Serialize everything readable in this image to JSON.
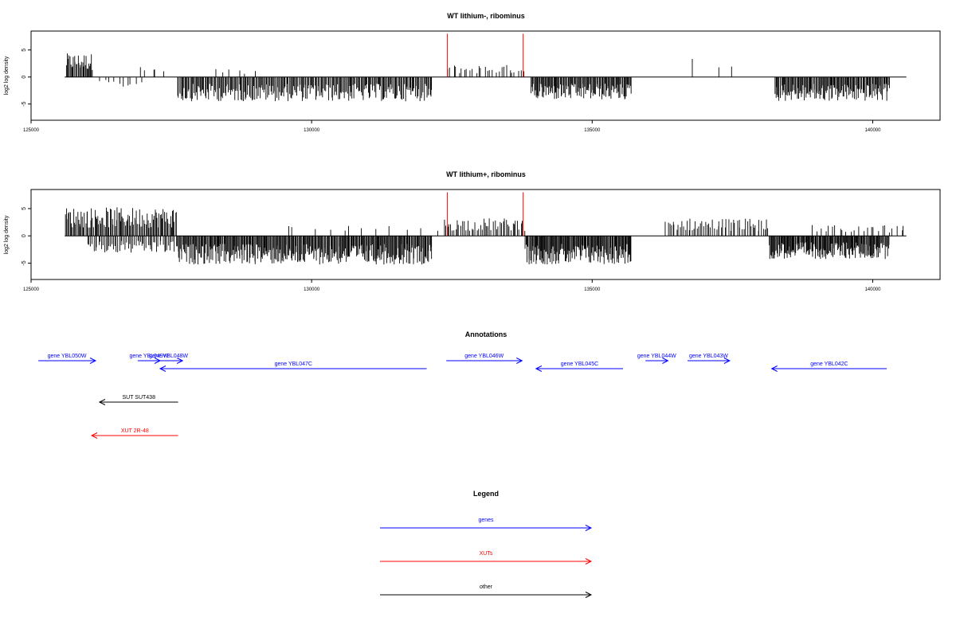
{
  "chart_data": [
    {
      "type": "bar",
      "title": "WT lithium-, ribominus",
      "xlabel": "",
      "ylabel": "log2 log density",
      "xlim": [
        125000,
        141200
      ],
      "ylim": [
        -8,
        8.5
      ],
      "x_ticks": [
        125000,
        130000,
        135000,
        140000
      ],
      "y_ticks": [
        -5,
        0,
        5
      ],
      "colors": {
        "bars": "#000000",
        "markers": "#ff0000"
      },
      "markers": [
        {
          "x": 132420,
          "y": 8
        },
        {
          "x": 133770,
          "y": 8
        }
      ],
      "segments": [
        {
          "x0": 125620,
          "x1": 126100,
          "sign": 1,
          "amp": 3.5,
          "n": 30
        },
        {
          "x0": 126200,
          "x1": 127000,
          "sign": -1,
          "amp": 1.6,
          "n": 10
        },
        {
          "x0": 126900,
          "x1": 127400,
          "sign": 1,
          "amp": 1.5,
          "n": 5
        },
        {
          "x0": 127600,
          "x1": 132150,
          "sign": -1,
          "amp": 3.6,
          "n": 260
        },
        {
          "x0": 128200,
          "x1": 129000,
          "sign": 1,
          "amp": 1.2,
          "n": 6
        },
        {
          "x0": 132400,
          "x1": 133800,
          "sign": 1,
          "amp": 1.8,
          "n": 28
        },
        {
          "x0": 133900,
          "x1": 135700,
          "sign": -1,
          "amp": 3.4,
          "n": 120
        },
        {
          "x0": 136500,
          "x1": 137700,
          "sign": 1,
          "amp": 2.8,
          "n": 3
        },
        {
          "x0": 138250,
          "x1": 140300,
          "sign": -1,
          "amp": 3.6,
          "n": 140
        }
      ]
    },
    {
      "type": "bar",
      "title": "WT lithium+, ribominus",
      "xlabel": "",
      "ylabel": "log2 log density",
      "xlim": [
        125000,
        141200
      ],
      "ylim": [
        -8,
        8.5
      ],
      "x_ticks": [
        125000,
        130000,
        135000,
        140000
      ],
      "y_ticks": [
        -5,
        0,
        5
      ],
      "colors": {
        "bars": "#000000",
        "markers": "#ff0000"
      },
      "markers": [
        {
          "x": 132420,
          "y": 8
        },
        {
          "x": 133770,
          "y": 8
        }
      ],
      "segments": [
        {
          "x0": 125600,
          "x1": 127600,
          "sign": 1,
          "amp": 4.2,
          "n": 110
        },
        {
          "x0": 126000,
          "x1": 127600,
          "sign": -1,
          "amp": 2.6,
          "n": 60
        },
        {
          "x0": 127600,
          "x1": 132150,
          "sign": -1,
          "amp": 4.2,
          "n": 330
        },
        {
          "x0": 129400,
          "x1": 132300,
          "sign": 1,
          "amp": 1.5,
          "n": 12
        },
        {
          "x0": 132350,
          "x1": 133800,
          "sign": 1,
          "amp": 2.6,
          "n": 50
        },
        {
          "x0": 133800,
          "x1": 135700,
          "sign": -1,
          "amp": 4.2,
          "n": 150
        },
        {
          "x0": 136300,
          "x1": 138150,
          "sign": 1,
          "amp": 2.6,
          "n": 60
        },
        {
          "x0": 138150,
          "x1": 140300,
          "sign": -1,
          "amp": 3.4,
          "n": 170
        },
        {
          "x0": 138900,
          "x1": 140600,
          "sign": 1,
          "amp": 1.6,
          "n": 25
        }
      ]
    }
  ],
  "annotations": {
    "title": "Annotations",
    "features": [
      {
        "label": "gene YBL050W",
        "start": 125130,
        "end": 126150,
        "strand": "+",
        "track": 0,
        "color": "#0000ff"
      },
      {
        "label": "gene YBL049W",
        "start": 126900,
        "end": 127300,
        "strand": "+",
        "track": 0,
        "color": "#0000ff"
      },
      {
        "label": "gene YBL048W",
        "start": 127200,
        "end": 127700,
        "strand": "+",
        "track": 0,
        "color": "#0000ff"
      },
      {
        "label": "gene YBL047C",
        "start": 127300,
        "end": 132050,
        "strand": "-",
        "track": 1,
        "color": "#0000ff"
      },
      {
        "label": "gene YBL046W",
        "start": 132400,
        "end": 133750,
        "strand": "+",
        "track": 0,
        "color": "#0000ff"
      },
      {
        "label": "gene YBL045C",
        "start": 134000,
        "end": 135550,
        "strand": "-",
        "track": 1,
        "color": "#0000ff"
      },
      {
        "label": "gene YBL044W",
        "start": 135950,
        "end": 136350,
        "strand": "+",
        "track": 0,
        "color": "#0000ff"
      },
      {
        "label": "gene YBL043W",
        "start": 136700,
        "end": 137450,
        "strand": "+",
        "track": 0,
        "color": "#0000ff"
      },
      {
        "label": "gene YBL042C",
        "start": 138200,
        "end": 140250,
        "strand": "-",
        "track": 1,
        "color": "#0000ff"
      },
      {
        "label": "SUT SUT438",
        "start": 126220,
        "end": 127620,
        "strand": "-",
        "track": 2,
        "color": "#000000"
      },
      {
        "label": "XUT 2R-48",
        "start": 126080,
        "end": 127620,
        "strand": "-",
        "track": 3,
        "color": "#ff0000"
      }
    ]
  },
  "legend": {
    "title": "Legend",
    "items": [
      {
        "label": "genes",
        "color": "#0000ff"
      },
      {
        "label": "XUTs",
        "color": "#ff0000"
      },
      {
        "label": "other",
        "color": "#000000"
      }
    ]
  }
}
